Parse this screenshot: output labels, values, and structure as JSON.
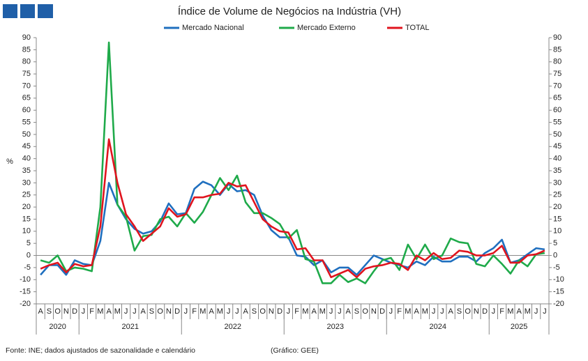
{
  "chart_data": {
    "type": "line",
    "title": "Índice de Volume de Negócios na Indústria (VH)",
    "y_label": "%",
    "source": "Fonte: INE; dados ajustados de sazonalidade e calendário",
    "credit": "(Gráfico: GEE)",
    "categories": [
      "A",
      "S",
      "O",
      "N",
      "D",
      "J",
      "F",
      "M",
      "A",
      "M",
      "J",
      "J",
      "A",
      "S",
      "O",
      "N",
      "D",
      "J",
      "F",
      "M",
      "A",
      "M",
      "J",
      "J",
      "A",
      "S",
      "O",
      "N",
      "D",
      "J",
      "F",
      "M",
      "A",
      "M",
      "J",
      "J",
      "A",
      "S",
      "O",
      "N",
      "D",
      "J",
      "F",
      "M",
      "A",
      "M",
      "J",
      "J",
      "A",
      "S",
      "O",
      "N",
      "D",
      "J",
      "F",
      "M",
      "A",
      "M",
      "J",
      "J"
    ],
    "year_labels": [
      "2020",
      "2021",
      "2022",
      "2023",
      "2024",
      "2025"
    ],
    "series": [
      {
        "name": "Mercado Nacional",
        "color": "#1f6fbf",
        "values": [
          -8,
          -4,
          -4,
          -8,
          -2,
          -3.5,
          -4,
          6,
          30,
          21,
          15,
          11,
          9,
          10,
          14,
          21.5,
          17,
          17.5,
          27.5,
          30.5,
          29,
          25,
          29.5,
          26.5,
          27,
          25,
          16.5,
          10.5,
          7.5,
          7.5,
          0,
          -0.5,
          -4,
          -2,
          -7,
          -5,
          -5,
          -8,
          -4,
          0,
          -1.5,
          -3,
          -4,
          -5,
          -2.5,
          -4,
          -0.5,
          -2.5,
          -2.5,
          -0.5,
          -0.5,
          -2.5,
          1,
          3,
          6.5,
          -3,
          -2,
          0.5,
          3,
          2.5
        ]
      },
      {
        "name": "Mercado Externo",
        "color": "#1faa4a",
        "values": [
          -2,
          -3,
          0,
          -6.5,
          -5,
          -5.5,
          -6.5,
          20,
          88,
          21,
          16,
          2,
          8,
          8.5,
          15,
          16,
          12,
          17.5,
          13.5,
          18,
          25,
          32,
          27,
          33,
          22,
          17.5,
          17.5,
          15.5,
          13,
          7,
          10.5,
          -1.5,
          -2.5,
          -11.5,
          -11.5,
          -8,
          -11,
          -9.5,
          -11.5,
          -6.5,
          -2,
          -1,
          -6,
          4.5,
          -1.5,
          4.5,
          -1.5,
          0,
          7,
          5.5,
          5,
          -3.5,
          -4.5,
          0,
          -3.5,
          -7.5,
          -2,
          -4.5,
          0.5,
          1
        ]
      },
      {
        "name": "TOTAL",
        "color": "#e0141e",
        "values": [
          -5.5,
          -4,
          -3,
          -7,
          -3.5,
          -4.5,
          -4,
          12,
          48,
          30,
          17,
          12,
          6,
          9,
          12,
          19.5,
          16,
          17,
          24,
          24,
          25,
          25.5,
          30,
          28.5,
          29,
          22,
          15,
          12,
          10,
          9.5,
          2.5,
          3,
          -2,
          -2,
          -9,
          -7.5,
          -6,
          -9,
          -5.5,
          -4.5,
          -4,
          -3,
          -3.5,
          -6,
          0,
          -2,
          1,
          -1.5,
          -1,
          2,
          1.5,
          0,
          0,
          1,
          4,
          -3,
          -3,
          0,
          0.5,
          2
        ]
      }
    ],
    "ylim": [
      -20,
      90
    ],
    "yticks": [
      -20,
      -15,
      -10,
      -5,
      0,
      5,
      10,
      15,
      20,
      25,
      30,
      35,
      40,
      45,
      50,
      55,
      60,
      65,
      70,
      75,
      80,
      85,
      90
    ],
    "y2lim": [
      -20,
      90
    ],
    "y2ticks": [
      -20,
      -15,
      -10,
      -5,
      0,
      5,
      10,
      15,
      20,
      25,
      30,
      35,
      40,
      45,
      50,
      55,
      60,
      65,
      70,
      75,
      80,
      85,
      90
    ],
    "grid": false
  }
}
